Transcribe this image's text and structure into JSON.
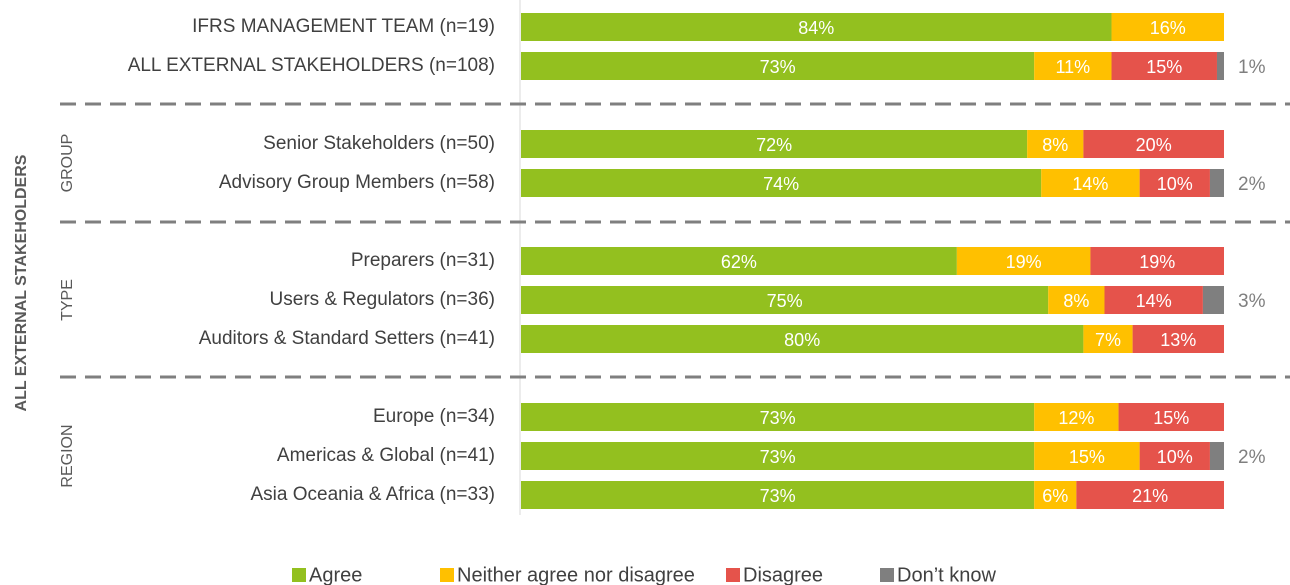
{
  "chart_data": {
    "type": "stacked-bar-horizontal",
    "y_axis_title": "ALL EXTERNAL STAKEHOLDERS",
    "groups": [
      "GROUP",
      "TYPE",
      "REGION"
    ],
    "categories": [
      "IFRS MANAGEMENT TEAM (n=19)",
      "ALL EXTERNAL STAKEHOLDERS (n=108)",
      "Senior Stakeholders (n=50)",
      "Advisory Group Members (n=58)",
      "Preparers (n=31)",
      "Users & Regulators (n=36)",
      "Auditors & Standard Setters (n=41)",
      "Europe (n=34)",
      "Americas & Global (n=41)",
      "Asia Oceania & Africa (n=33)"
    ],
    "xlim": [
      0,
      100
    ],
    "series": [
      {
        "name": "Agree",
        "color": "#93c01f",
        "values": [
          84,
          73,
          72,
          74,
          62,
          75,
          80,
          73,
          73,
          73
        ],
        "value_labels": [
          "84%",
          "73%",
          "72%",
          "74%",
          "62%",
          "75%",
          "80%",
          "73%",
          "73%",
          "73%"
        ]
      },
      {
        "name": "Neither agree nor disagree",
        "color": "#ffc000",
        "values": [
          16,
          11,
          8,
          14,
          19,
          8,
          7,
          12,
          15,
          6
        ],
        "value_labels": [
          "16%",
          "11%",
          "8%",
          "14%",
          "19%",
          "8%",
          "7%",
          "12%",
          "15%",
          "6%"
        ]
      },
      {
        "name": "Disagree",
        "color": "#e5534b",
        "values": [
          0,
          15,
          20,
          10,
          19,
          14,
          13,
          15,
          10,
          21
        ],
        "value_labels": [
          null,
          "15%",
          "20%",
          "10%",
          "19%",
          "14%",
          "13%",
          "15%",
          "10%",
          "21%"
        ]
      },
      {
        "name": "Don’t know",
        "color": "#7f7f7f",
        "values": [
          0,
          1,
          0,
          2,
          0,
          3,
          0,
          0,
          2,
          0
        ],
        "value_labels": [
          null,
          "1%",
          null,
          "2%",
          null,
          "3%",
          null,
          null,
          "2%",
          null
        ]
      }
    ]
  }
}
